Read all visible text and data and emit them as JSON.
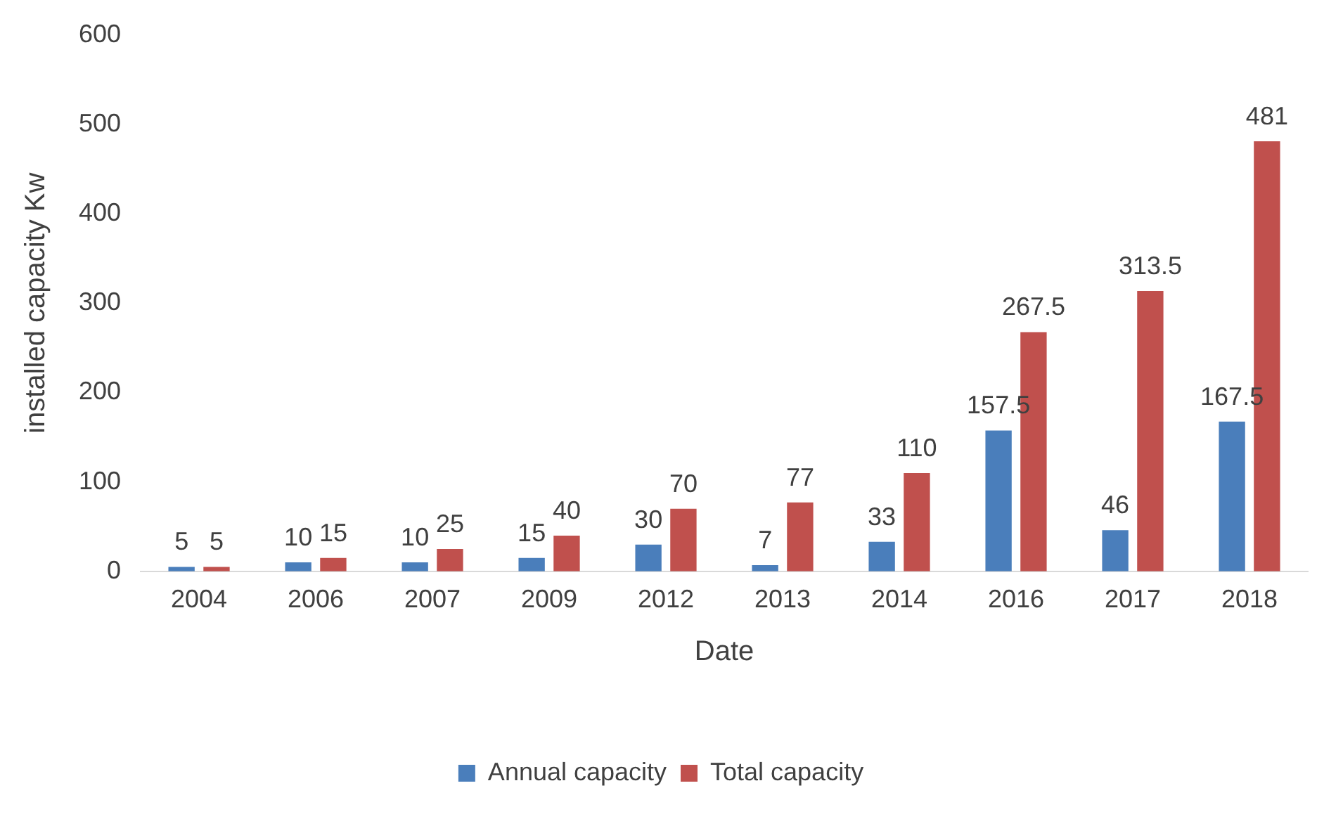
{
  "chart_data": {
    "type": "bar",
    "xlabel": "Date",
    "ylabel": "installed capacity Kw",
    "categories": [
      "2004",
      "2006",
      "2007",
      "2009",
      "2012",
      "2013",
      "2014",
      "2016",
      "2017",
      "2018"
    ],
    "series": [
      {
        "name": "Annual capacity",
        "color": "#4a7ebb",
        "values": [
          5,
          10,
          10,
          15,
          30,
          7,
          33,
          157.5,
          46,
          167.5
        ]
      },
      {
        "name": "Total capacity",
        "color": "#c0504d",
        "values": [
          5,
          15,
          25,
          40,
          70,
          77,
          110,
          267.5,
          313.5,
          481
        ]
      }
    ],
    "ylim": [
      0,
      600
    ],
    "yticks": [
      0,
      100,
      200,
      300,
      400,
      500,
      600
    ],
    "data_labels": true,
    "legend": "bottom"
  }
}
